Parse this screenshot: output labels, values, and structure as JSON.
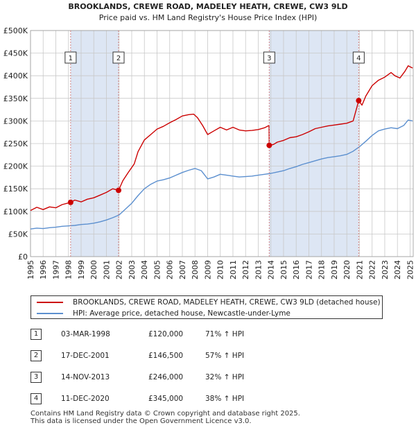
{
  "chart_data": {
    "type": "line",
    "title": "BROOKLANDS, CREWE ROAD, MADELEY HEATH, CREWE, CW3 9LD",
    "subtitle": "Price paid vs. HM Land Registry's House Price Index (HPI)",
    "xlim": [
      1995,
      2025.25
    ],
    "ylim": [
      0,
      500000
    ],
    "x_ticks": [
      1995,
      1996,
      1997,
      1998,
      1999,
      2000,
      2001,
      2002,
      2003,
      2004,
      2005,
      2006,
      2007,
      2008,
      2009,
      2010,
      2011,
      2012,
      2013,
      2014,
      2015,
      2016,
      2017,
      2018,
      2019,
      2020,
      2021,
      2022,
      2023,
      2024,
      2025
    ],
    "y_ticks": [
      {
        "value": 0,
        "label": "£0"
      },
      {
        "value": 50000,
        "label": "£50K"
      },
      {
        "value": 100000,
        "label": "£100K"
      },
      {
        "value": 150000,
        "label": "£150K"
      },
      {
        "value": 200000,
        "label": "£200K"
      },
      {
        "value": 250000,
        "label": "£250K"
      },
      {
        "value": 300000,
        "label": "£300K"
      },
      {
        "value": 350000,
        "label": "£350K"
      },
      {
        "value": 400000,
        "label": "£400K"
      },
      {
        "value": 450000,
        "label": "£450K"
      },
      {
        "value": 500000,
        "label": "£500K"
      }
    ],
    "grid": true,
    "series": [
      {
        "name": "BROOKLANDS, CREWE ROAD, MADELEY HEATH, CREWE, CW3 9LD (detached house)",
        "color": "#cc0000",
        "points": [
          [
            1995,
            102000
          ],
          [
            1995.5,
            109000
          ],
          [
            1996,
            104000
          ],
          [
            1996.5,
            110000
          ],
          [
            1997,
            108000
          ],
          [
            1997.5,
            115000
          ],
          [
            1998.17,
            120000
          ],
          [
            1998.5,
            125000
          ],
          [
            1999,
            121000
          ],
          [
            1999.5,
            127000
          ],
          [
            2000,
            130000
          ],
          [
            2000.5,
            136000
          ],
          [
            2001,
            142000
          ],
          [
            2001.5,
            150000
          ],
          [
            2001.96,
            146500
          ],
          [
            2002.3,
            168000
          ],
          [
            2002.7,
            185000
          ],
          [
            2003.2,
            205000
          ],
          [
            2003.5,
            232000
          ],
          [
            2004,
            258000
          ],
          [
            2004.5,
            270000
          ],
          [
            2005,
            282000
          ],
          [
            2005.5,
            288000
          ],
          [
            2006,
            296000
          ],
          [
            2006.5,
            303000
          ],
          [
            2007,
            311000
          ],
          [
            2007.5,
            314000
          ],
          [
            2007.9,
            315000
          ],
          [
            2008.2,
            307000
          ],
          [
            2008.6,
            290000
          ],
          [
            2009,
            270000
          ],
          [
            2009.5,
            278000
          ],
          [
            2010,
            286000
          ],
          [
            2010.5,
            280000
          ],
          [
            2011,
            286000
          ],
          [
            2011.5,
            280000
          ],
          [
            2012,
            278000
          ],
          [
            2012.5,
            279000
          ],
          [
            2013,
            281000
          ],
          [
            2013.5,
            285000
          ],
          [
            2013.85,
            290000
          ],
          [
            2013.87,
            246000
          ],
          [
            2014.2,
            248000
          ],
          [
            2014.5,
            253000
          ],
          [
            2015,
            257000
          ],
          [
            2015.5,
            263000
          ],
          [
            2016,
            265000
          ],
          [
            2016.5,
            270000
          ],
          [
            2017,
            276000
          ],
          [
            2017.5,
            283000
          ],
          [
            2018,
            286000
          ],
          [
            2018.5,
            289000
          ],
          [
            2019,
            291000
          ],
          [
            2019.5,
            293000
          ],
          [
            2020,
            295000
          ],
          [
            2020.5,
            300000
          ],
          [
            2020.94,
            345000
          ],
          [
            2021.2,
            335000
          ],
          [
            2021.5,
            355000
          ],
          [
            2022,
            378000
          ],
          [
            2022.5,
            390000
          ],
          [
            2023,
            397000
          ],
          [
            2023.5,
            407000
          ],
          [
            2023.8,
            400000
          ],
          [
            2024.2,
            395000
          ],
          [
            2024.6,
            410000
          ],
          [
            2024.85,
            422000
          ],
          [
            2025.2,
            417000
          ]
        ]
      },
      {
        "name": "HPI: Average price, detached house, Newcastle-under-Lyme",
        "color": "#5b8fcf",
        "points": [
          [
            1995,
            61000
          ],
          [
            1995.5,
            63000
          ],
          [
            1996,
            62000
          ],
          [
            1996.5,
            64000
          ],
          [
            1997,
            65000
          ],
          [
            1997.5,
            67000
          ],
          [
            1998,
            68000
          ],
          [
            1998.5,
            69000
          ],
          [
            1999,
            71000
          ],
          [
            1999.5,
            72000
          ],
          [
            2000,
            74000
          ],
          [
            2000.5,
            77000
          ],
          [
            2001,
            81000
          ],
          [
            2001.5,
            86000
          ],
          [
            2002,
            92000
          ],
          [
            2002.5,
            105000
          ],
          [
            2003,
            118000
          ],
          [
            2003.5,
            135000
          ],
          [
            2004,
            150000
          ],
          [
            2004.5,
            160000
          ],
          [
            2005,
            167000
          ],
          [
            2005.5,
            170000
          ],
          [
            2006,
            174000
          ],
          [
            2006.5,
            180000
          ],
          [
            2007,
            186000
          ],
          [
            2007.5,
            191000
          ],
          [
            2008,
            195000
          ],
          [
            2008.5,
            190000
          ],
          [
            2009,
            172000
          ],
          [
            2009.5,
            176000
          ],
          [
            2010,
            182000
          ],
          [
            2010.5,
            180000
          ],
          [
            2011,
            178000
          ],
          [
            2011.5,
            176000
          ],
          [
            2012,
            177000
          ],
          [
            2012.5,
            178000
          ],
          [
            2013,
            180000
          ],
          [
            2013.5,
            182000
          ],
          [
            2014,
            184000
          ],
          [
            2014.5,
            187000
          ],
          [
            2015,
            190000
          ],
          [
            2015.5,
            195000
          ],
          [
            2016,
            199000
          ],
          [
            2016.5,
            204000
          ],
          [
            2017,
            208000
          ],
          [
            2017.5,
            212000
          ],
          [
            2018,
            216000
          ],
          [
            2018.5,
            219000
          ],
          [
            2019,
            221000
          ],
          [
            2019.5,
            223000
          ],
          [
            2020,
            226000
          ],
          [
            2020.5,
            233000
          ],
          [
            2021,
            243000
          ],
          [
            2021.5,
            255000
          ],
          [
            2022,
            268000
          ],
          [
            2022.5,
            278000
          ],
          [
            2023,
            282000
          ],
          [
            2023.5,
            285000
          ],
          [
            2024,
            283000
          ],
          [
            2024.5,
            290000
          ],
          [
            2024.85,
            302000
          ],
          [
            2025.2,
            300000
          ]
        ]
      }
    ],
    "sales": [
      {
        "idx": "1",
        "x": 1998.17,
        "price": 120000,
        "date": "03-MAR-1998",
        "price_label": "£120,000",
        "hpi": "71% ↑ HPI"
      },
      {
        "idx": "2",
        "x": 2001.96,
        "price": 146500,
        "date": "17-DEC-2001",
        "price_label": "£146,500",
        "hpi": "57% ↑ HPI"
      },
      {
        "idx": "3",
        "x": 2013.87,
        "price": 246000,
        "date": "14-NOV-2013",
        "price_label": "£246,000",
        "hpi": "32% ↑ HPI"
      },
      {
        "idx": "4",
        "x": 2020.94,
        "price": 345000,
        "date": "11-DEC-2020",
        "price_label": "£345,000",
        "hpi": "38% ↑ HPI"
      }
    ],
    "shaded_ranges": [
      [
        1998.17,
        2001.96
      ],
      [
        2013.87,
        2020.94
      ]
    ],
    "colors": {
      "shade": "#dde6f4",
      "marker_line": "#d08080",
      "grid": "#c8c8c8"
    }
  },
  "legend": {
    "property": "BROOKLANDS, CREWE ROAD, MADELEY HEATH, CREWE, CW3 9LD (detached house)",
    "hpi": "HPI: Average price, detached house, Newcastle-under-Lyme"
  },
  "footer": {
    "line1": "Contains HM Land Registry data © Crown copyright and database right 2025.",
    "line2": "This data is licensed under the Open Government Licence v3.0."
  }
}
